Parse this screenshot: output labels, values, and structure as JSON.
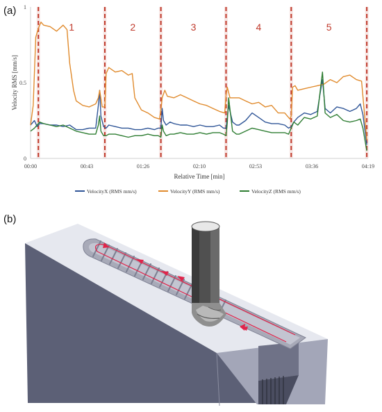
{
  "panels": {
    "a": "(a)",
    "b": "(b)"
  },
  "chart_data": {
    "type": "line",
    "xlabel": "Relative Time [min]",
    "ylabel": "Velocity RMS [mm/s]",
    "x_ticks": [
      "00:00",
      "00:43",
      "01:26",
      "02:10",
      "02:53",
      "03:36",
      "04:19"
    ],
    "y_ticks": [
      {
        "label": "0",
        "value": 0
      },
      {
        "label": "0.5",
        "value": 0.5
      },
      {
        "label": "1",
        "value": 1
      }
    ],
    "xlim": [
      0,
      259
    ],
    "ylim": [
      0,
      1
    ],
    "grid": false,
    "legend_position": "bottom",
    "passes": [
      {
        "label": "1",
        "start": 6,
        "end": 57
      },
      {
        "label": "2",
        "start": 57,
        "end": 100
      },
      {
        "label": "3",
        "start": 100,
        "end": 150
      },
      {
        "label": "4",
        "start": 150,
        "end": 200
      },
      {
        "label": "5",
        "start": 200,
        "end": 258
      }
    ],
    "series": [
      {
        "name": "VelocityX (RMS mm/s)",
        "color": "#2f5597",
        "x": [
          0,
          3,
          5,
          7,
          10,
          15,
          20,
          25,
          30,
          35,
          40,
          45,
          50,
          52,
          53,
          54,
          56,
          58,
          60,
          65,
          70,
          75,
          80,
          85,
          90,
          95,
          98,
          100,
          101,
          102,
          104,
          107,
          110,
          115,
          120,
          125,
          130,
          135,
          140,
          145,
          148,
          150,
          151,
          152,
          155,
          158,
          160,
          165,
          170,
          175,
          180,
          185,
          190,
          195,
          198,
          200,
          202,
          205,
          210,
          215,
          220,
          222,
          224,
          226,
          230,
          235,
          240,
          245,
          250,
          253,
          255,
          258
        ],
        "y": [
          0.22,
          0.25,
          0.21,
          0.23,
          0.23,
          0.22,
          0.22,
          0.21,
          0.22,
          0.19,
          0.19,
          0.2,
          0.2,
          0.35,
          0.45,
          0.28,
          0.21,
          0.2,
          0.22,
          0.21,
          0.2,
          0.2,
          0.19,
          0.19,
          0.2,
          0.19,
          0.2,
          0.2,
          0.33,
          0.25,
          0.22,
          0.24,
          0.23,
          0.22,
          0.22,
          0.21,
          0.22,
          0.21,
          0.21,
          0.22,
          0.2,
          0.2,
          0.27,
          0.35,
          0.24,
          0.22,
          0.22,
          0.25,
          0.3,
          0.27,
          0.24,
          0.23,
          0.23,
          0.22,
          0.2,
          0.21,
          0.24,
          0.27,
          0.3,
          0.29,
          0.31,
          0.42,
          0.52,
          0.33,
          0.3,
          0.34,
          0.33,
          0.31,
          0.33,
          0.36,
          0.29,
          0.09
        ]
      },
      {
        "name": "VelocityY (RMS mm/s)",
        "color": "#e08a2c",
        "x": [
          0,
          2,
          4,
          6,
          8,
          10,
          15,
          20,
          25,
          28,
          30,
          33,
          35,
          40,
          45,
          50,
          52,
          53,
          55,
          57,
          58,
          60,
          65,
          70,
          75,
          78,
          80,
          85,
          90,
          95,
          99,
          100,
          101,
          103,
          105,
          110,
          115,
          120,
          125,
          130,
          135,
          140,
          145,
          149,
          150,
          151,
          153,
          156,
          160,
          165,
          170,
          175,
          180,
          185,
          190,
          195,
          199,
          200,
          201,
          203,
          205,
          210,
          215,
          220,
          225,
          230,
          235,
          240,
          245,
          250,
          254,
          258
        ],
        "y": [
          0.22,
          0.35,
          0.8,
          0.86,
          0.9,
          0.88,
          0.87,
          0.84,
          0.88,
          0.85,
          0.63,
          0.45,
          0.38,
          0.35,
          0.34,
          0.36,
          0.4,
          0.45,
          0.34,
          0.34,
          0.56,
          0.6,
          0.57,
          0.58,
          0.55,
          0.56,
          0.4,
          0.32,
          0.3,
          0.27,
          0.26,
          0.32,
          0.4,
          0.45,
          0.41,
          0.4,
          0.42,
          0.4,
          0.38,
          0.36,
          0.35,
          0.33,
          0.31,
          0.3,
          0.42,
          0.47,
          0.4,
          0.4,
          0.4,
          0.38,
          0.36,
          0.37,
          0.34,
          0.35,
          0.3,
          0.3,
          0.26,
          0.28,
          0.47,
          0.48,
          0.45,
          0.46,
          0.47,
          0.48,
          0.49,
          0.52,
          0.5,
          0.54,
          0.55,
          0.52,
          0.51,
          0.12
        ]
      },
      {
        "name": "VelocityZ (RMS mm/s)",
        "color": "#2e7d32",
        "x": [
          0,
          3,
          5,
          7,
          10,
          15,
          20,
          25,
          30,
          35,
          40,
          45,
          50,
          52,
          53,
          54,
          56,
          58,
          60,
          65,
          70,
          75,
          80,
          85,
          90,
          95,
          98,
          100,
          101,
          102,
          104,
          107,
          110,
          115,
          120,
          125,
          130,
          135,
          140,
          145,
          148,
          150,
          151,
          152,
          155,
          158,
          160,
          165,
          170,
          175,
          180,
          185,
          190,
          195,
          198,
          200,
          202,
          205,
          210,
          215,
          220,
          222,
          224,
          226,
          230,
          235,
          240,
          245,
          250,
          253,
          255,
          258
        ],
        "y": [
          0.18,
          0.2,
          0.22,
          0.24,
          0.23,
          0.22,
          0.21,
          0.22,
          0.2,
          0.18,
          0.17,
          0.16,
          0.16,
          0.22,
          0.28,
          0.18,
          0.15,
          0.15,
          0.16,
          0.16,
          0.15,
          0.14,
          0.15,
          0.15,
          0.16,
          0.15,
          0.15,
          0.14,
          0.22,
          0.18,
          0.15,
          0.16,
          0.16,
          0.17,
          0.16,
          0.16,
          0.17,
          0.16,
          0.17,
          0.17,
          0.16,
          0.15,
          0.24,
          0.4,
          0.18,
          0.16,
          0.16,
          0.18,
          0.2,
          0.19,
          0.18,
          0.17,
          0.17,
          0.17,
          0.16,
          0.2,
          0.24,
          0.22,
          0.27,
          0.26,
          0.28,
          0.43,
          0.57,
          0.3,
          0.27,
          0.29,
          0.25,
          0.24,
          0.25,
          0.26,
          0.2,
          0.05
        ]
      }
    ]
  },
  "colors": {
    "pass_divider": "#c0392b",
    "pass_label": "#c0392b",
    "part_front": "#5a5e73",
    "part_top": "#e4e6ee",
    "part_side": "#9da0b3",
    "tool": "#4d4d4d",
    "toolpath": "#e0244a"
  }
}
